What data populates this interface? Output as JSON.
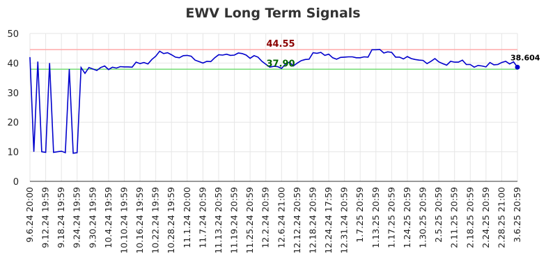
{
  "chart_data": {
    "type": "line",
    "title": "EWV Long Term Signals",
    "categories": [
      "9.6.24 20:00",
      null,
      null,
      null,
      "9.12.24 19:59",
      null,
      null,
      null,
      "9.18.24 19:59",
      null,
      null,
      null,
      "9.24.24 19:59",
      null,
      null,
      null,
      "9.30.24 19:59",
      null,
      null,
      null,
      "10.4.24 19:59",
      null,
      null,
      null,
      "10.10.24 19:59",
      null,
      null,
      null,
      "10.16.24 19:59",
      null,
      null,
      null,
      "10.22.24 19:59",
      null,
      null,
      null,
      "10.28.24 19:59",
      null,
      null,
      null,
      "11.1.24 20:00",
      null,
      null,
      null,
      "11.7.24 20:59",
      null,
      null,
      null,
      "11.13.24 20:59",
      null,
      null,
      null,
      "11.19.24 20:59",
      null,
      null,
      null,
      "11.25.24 20:59",
      null,
      null,
      null,
      "12.2.24 20:59",
      null,
      null,
      null,
      "12.6.24 21:00",
      null,
      null,
      null,
      "12.12.24 20:59",
      null,
      null,
      null,
      "12.18.24 20:59",
      null,
      null,
      null,
      "12.24.24 17:59",
      null,
      null,
      null,
      "12.31.24 20:59",
      null,
      null,
      null,
      "1.7.25 20:59",
      null,
      null,
      null,
      "1.13.25 20:59",
      null,
      null,
      null,
      "1.17.25 20:59",
      null,
      null,
      null,
      "1.24.25 20:59",
      null,
      null,
      null,
      "1.30.25 20:59",
      null,
      null,
      null,
      "2.5.25 20:59",
      null,
      null,
      null,
      "2.11.25 20:59",
      null,
      null,
      null,
      "2.18.25 20:59",
      null,
      null,
      null,
      "2.24.25 20:59",
      null,
      null,
      null,
      "2.28.25 21:00",
      null,
      null,
      null,
      "3.6.25 20:59"
    ],
    "values": [
      42,
      10,
      40.5,
      10,
      9.8,
      40,
      9.8,
      10,
      10.2,
      9.7,
      38,
      9.5,
      9.7,
      38.5,
      36.5,
      38.5,
      38,
      37.5,
      38.5,
      39,
      37.8,
      38.6,
      38.3,
      38.8,
      38.7,
      38.7,
      38.6,
      40.3,
      39.8,
      40.2,
      39.7,
      41.2,
      42.3,
      44,
      43.2,
      43.5,
      42.8,
      42,
      41.8,
      42.5,
      42.6,
      42.3,
      41,
      40.5,
      40,
      40.6,
      40.5,
      41.8,
      42.8,
      42.7,
      43,
      42.6,
      42.7,
      43.4,
      43.2,
      42.7,
      41.6,
      42.5,
      42,
      40.6,
      39.6,
      38.6,
      38.9,
      38.8,
      38.2,
      39.6,
      40.3,
      39,
      40,
      40.8,
      41.2,
      41.3,
      43.5,
      43.3,
      43.6,
      42.6,
      43,
      41.8,
      41.3,
      41.9,
      42,
      42.1,
      42.1,
      41.8,
      41.8,
      42.1,
      42,
      44.5,
      44.5,
      44.6,
      43.4,
      43.8,
      43.6,
      42,
      42,
      41.4,
      42.2,
      41.5,
      41.2,
      41,
      40.9,
      39.8,
      40.6,
      41.5,
      40.4,
      39.8,
      39.3,
      40.6,
      40.3,
      40.3,
      41,
      39.5,
      39.5,
      38.6,
      39.2,
      39,
      38.7,
      40.2,
      39.4,
      39.5,
      40.2,
      40.6,
      39.7,
      40.4,
      38.604
    ],
    "color": "#0000cc",
    "ylim": [
      0,
      50
    ],
    "yticks": [
      0,
      10,
      20,
      30,
      40,
      50
    ],
    "grid": true,
    "reference_lines": [
      {
        "value": 44.55,
        "label": "44.55",
        "color": "#ffaaaa",
        "label_color": "#8b0000"
      },
      {
        "value": 37.9,
        "label": "37.90",
        "color": "#77dd77",
        "label_color": "#006400"
      }
    ]
  }
}
